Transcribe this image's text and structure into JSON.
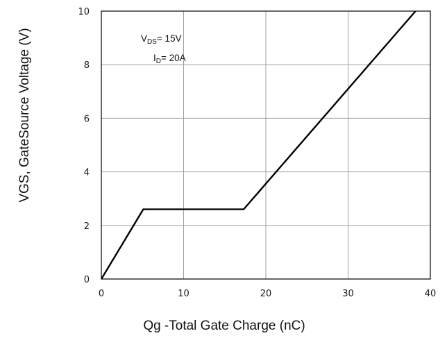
{
  "chart_data": {
    "type": "line",
    "xlabel": "Qg -Total Gate Charge (nC)",
    "ylabel": "VGS, GateSource Voltage (V)",
    "xlim": [
      0,
      40
    ],
    "ylim": [
      0,
      10
    ],
    "xticks": [
      0,
      10,
      20,
      30,
      40
    ],
    "yticks": [
      0,
      2,
      4,
      6,
      8,
      10
    ],
    "grid": true,
    "series": [
      {
        "x": [
          0,
          5.1,
          17.3,
          38.2
        ],
        "y": [
          0,
          2.6,
          2.6,
          10.0
        ]
      }
    ],
    "annotations": {
      "vds": {
        "prefix": "V",
        "subscript": "DS",
        "suffix": "= 15V"
      },
      "id": {
        "prefix": "I",
        "subscript": "D",
        "suffix": "= 20A"
      }
    },
    "colors": {
      "line": "#000000",
      "grid": "#a0a0a0",
      "frame": "#000000"
    }
  }
}
